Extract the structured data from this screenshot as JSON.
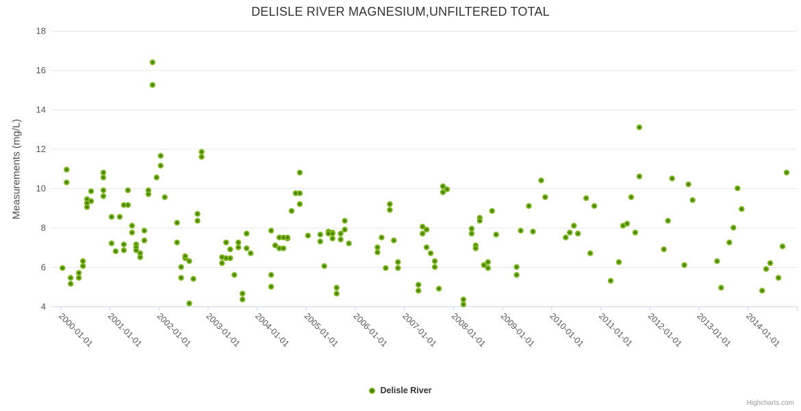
{
  "chart": {
    "title": "DELISLE RIVER MAGNESIUM,UNFILTERED TOTAL",
    "y_axis_title": "Measurements (mg/L)",
    "legend_label": "Delisle River",
    "credit": "Highcharts.com"
  },
  "colors": {
    "marker_ring": "#7CB31A",
    "marker_core": "#3E7A08",
    "gridline": "#e6e6e6",
    "axis_line": "#ccd6eb",
    "tick_label": "#555555",
    "title_text": "#333333"
  },
  "chart_data": {
    "type": "scatter",
    "title": "DELISLE RIVER MAGNESIUM,UNFILTERED TOTAL",
    "xlabel": "",
    "ylabel": "Measurements (mg/L)",
    "ylim": [
      4,
      18
    ],
    "y_ticks": [
      4,
      6,
      8,
      10,
      12,
      14,
      16,
      18
    ],
    "x_tick_labels": [
      "2000-01-01",
      "2001-01-01",
      "2002-01-01",
      "2003-01-01",
      "2004-01-01",
      "2005-01-01",
      "2006-01-01",
      "2007-01-01",
      "2008-01-01",
      "2009-01-01",
      "2010-01-01",
      "2011-01-01",
      "2012-01-01",
      "2013-01-01",
      "2014-01-01"
    ],
    "x_range_years": [
      2000,
      2015
    ],
    "grid": "horizontal",
    "legend_position": "bottom-center",
    "series": [
      {
        "name": "Delisle River",
        "points": [
          [
            "2000-01",
            5.95
          ],
          [
            "2000-02",
            10.95
          ],
          [
            "2000-02",
            10.3
          ],
          [
            "2000-03",
            5.45
          ],
          [
            "2000-03",
            5.15
          ],
          [
            "2000-05",
            5.7
          ],
          [
            "2000-05",
            5.45
          ],
          [
            "2000-06",
            6.3
          ],
          [
            "2000-06",
            6.05
          ],
          [
            "2000-07",
            9.45
          ],
          [
            "2000-07",
            9.05
          ],
          [
            "2000-07",
            9.25
          ],
          [
            "2000-08",
            9.35
          ],
          [
            "2000-08",
            9.85
          ],
          [
            "2000-11",
            10.8
          ],
          [
            "2000-11",
            10.55
          ],
          [
            "2000-11",
            9.9
          ],
          [
            "2000-11",
            9.6
          ],
          [
            "2001-01",
            8.55
          ],
          [
            "2001-01",
            7.2
          ],
          [
            "2001-02",
            6.8
          ],
          [
            "2001-03",
            8.55
          ],
          [
            "2001-04",
            9.15
          ],
          [
            "2001-04",
            7.15
          ],
          [
            "2001-04",
            6.85
          ],
          [
            "2001-05",
            9.9
          ],
          [
            "2001-05",
            9.15
          ],
          [
            "2001-06",
            8.1
          ],
          [
            "2001-06",
            7.75
          ],
          [
            "2001-07",
            7.15
          ],
          [
            "2001-07",
            7.0
          ],
          [
            "2001-07",
            6.85
          ],
          [
            "2001-08",
            6.7
          ],
          [
            "2001-08",
            6.5
          ],
          [
            "2001-09",
            7.85
          ],
          [
            "2001-09",
            7.35
          ],
          [
            "2001-10",
            9.9
          ],
          [
            "2001-10",
            9.7
          ],
          [
            "2001-11",
            16.4
          ],
          [
            "2001-11",
            15.25
          ],
          [
            "2001-12",
            10.55
          ],
          [
            "2002-01",
            11.65
          ],
          [
            "2002-01",
            11.15
          ],
          [
            "2002-02",
            9.55
          ],
          [
            "2002-05",
            7.25
          ],
          [
            "2002-05",
            8.25
          ],
          [
            "2002-06",
            6.0
          ],
          [
            "2002-06",
            5.45
          ],
          [
            "2002-07",
            6.45
          ],
          [
            "2002-07",
            6.55
          ],
          [
            "2002-08",
            6.3
          ],
          [
            "2002-08",
            4.15
          ],
          [
            "2002-09",
            5.4
          ],
          [
            "2002-10",
            8.7
          ],
          [
            "2002-10",
            8.35
          ],
          [
            "2002-11",
            11.85
          ],
          [
            "2002-11",
            11.6
          ],
          [
            "2003-04",
            6.5
          ],
          [
            "2003-04",
            6.2
          ],
          [
            "2003-05",
            6.45
          ],
          [
            "2003-05",
            7.25
          ],
          [
            "2003-06",
            6.45
          ],
          [
            "2003-06",
            6.9
          ],
          [
            "2003-07",
            5.6
          ],
          [
            "2003-08",
            7.25
          ],
          [
            "2003-08",
            7.0
          ],
          [
            "2003-09",
            4.65
          ],
          [
            "2003-09",
            4.35
          ],
          [
            "2003-10",
            6.95
          ],
          [
            "2003-10",
            7.7
          ],
          [
            "2003-11",
            6.7
          ],
          [
            "2004-04",
            5.6
          ],
          [
            "2004-04",
            5.0
          ],
          [
            "2004-04",
            7.85
          ],
          [
            "2004-05",
            7.1
          ],
          [
            "2004-06",
            7.5
          ],
          [
            "2004-06",
            6.95
          ],
          [
            "2004-07",
            7.5
          ],
          [
            "2004-07",
            6.95
          ],
          [
            "2004-08",
            7.45
          ],
          [
            "2004-08",
            7.5
          ],
          [
            "2004-09",
            8.85
          ],
          [
            "2004-10",
            9.75
          ],
          [
            "2004-11",
            10.8
          ],
          [
            "2004-11",
            9.75
          ],
          [
            "2004-11",
            9.2
          ],
          [
            "2005-01",
            7.6
          ],
          [
            "2005-04",
            7.65
          ],
          [
            "2005-04",
            7.3
          ],
          [
            "2005-05",
            6.05
          ],
          [
            "2005-06",
            7.8
          ],
          [
            "2005-06",
            7.7
          ],
          [
            "2005-07",
            7.45
          ],
          [
            "2005-07",
            7.75
          ],
          [
            "2005-07",
            7.7
          ],
          [
            "2005-08",
            4.95
          ],
          [
            "2005-08",
            4.65
          ],
          [
            "2005-09",
            7.7
          ],
          [
            "2005-09",
            7.4
          ],
          [
            "2005-10",
            8.35
          ],
          [
            "2005-10",
            7.9
          ],
          [
            "2005-11",
            7.2
          ],
          [
            "2006-06",
            7.0
          ],
          [
            "2006-06",
            6.75
          ],
          [
            "2006-07",
            7.5
          ],
          [
            "2006-08",
            5.95
          ],
          [
            "2006-09",
            9.2
          ],
          [
            "2006-09",
            8.9
          ],
          [
            "2006-10",
            7.35
          ],
          [
            "2006-11",
            6.25
          ],
          [
            "2006-11",
            5.95
          ],
          [
            "2007-04",
            5.1
          ],
          [
            "2007-04",
            4.8
          ],
          [
            "2007-05",
            8.05
          ],
          [
            "2007-05",
            7.7
          ],
          [
            "2007-06",
            7.9
          ],
          [
            "2007-06",
            7.0
          ],
          [
            "2007-07",
            6.7
          ],
          [
            "2007-08",
            6.3
          ],
          [
            "2007-08",
            6.0
          ],
          [
            "2007-09",
            4.9
          ],
          [
            "2007-10",
            10.1
          ],
          [
            "2007-10",
            9.8
          ],
          [
            "2007-11",
            9.95
          ],
          [
            "2008-03",
            4.35
          ],
          [
            "2008-03",
            4.1
          ],
          [
            "2008-05",
            7.95
          ],
          [
            "2008-05",
            7.7
          ],
          [
            "2008-06",
            7.1
          ],
          [
            "2008-06",
            6.95
          ],
          [
            "2008-07",
            8.5
          ],
          [
            "2008-07",
            8.35
          ],
          [
            "2008-08",
            6.1
          ],
          [
            "2008-09",
            6.25
          ],
          [
            "2008-09",
            5.95
          ],
          [
            "2008-10",
            8.85
          ],
          [
            "2008-11",
            7.65
          ],
          [
            "2009-04",
            6.0
          ],
          [
            "2009-04",
            5.6
          ],
          [
            "2009-05",
            7.85
          ],
          [
            "2009-07",
            9.1
          ],
          [
            "2009-08",
            7.8
          ],
          [
            "2009-10",
            10.4
          ],
          [
            "2009-11",
            9.55
          ],
          [
            "2010-04",
            7.5
          ],
          [
            "2010-05",
            7.75
          ],
          [
            "2010-06",
            8.1
          ],
          [
            "2010-07",
            7.7
          ],
          [
            "2010-09",
            9.5
          ],
          [
            "2010-10",
            6.7
          ],
          [
            "2010-11",
            9.1
          ],
          [
            "2011-03",
            5.3
          ],
          [
            "2011-05",
            6.25
          ],
          [
            "2011-06",
            8.1
          ],
          [
            "2011-07",
            8.2
          ],
          [
            "2011-08",
            9.55
          ],
          [
            "2011-09",
            7.75
          ],
          [
            "2011-10",
            13.1
          ],
          [
            "2011-10",
            10.6
          ],
          [
            "2012-04",
            6.9
          ],
          [
            "2012-05",
            8.35
          ],
          [
            "2012-06",
            10.5
          ],
          [
            "2012-09",
            6.1
          ],
          [
            "2012-10",
            10.2
          ],
          [
            "2012-11",
            9.4
          ],
          [
            "2013-05",
            6.3
          ],
          [
            "2013-06",
            4.95
          ],
          [
            "2013-08",
            7.25
          ],
          [
            "2013-09",
            8.0
          ],
          [
            "2013-10",
            10.0
          ],
          [
            "2013-11",
            8.95
          ],
          [
            "2014-04",
            4.8
          ],
          [
            "2014-05",
            5.9
          ],
          [
            "2014-06",
            6.2
          ],
          [
            "2014-08",
            5.45
          ],
          [
            "2014-09",
            7.05
          ],
          [
            "2014-10",
            10.8
          ]
        ]
      }
    ]
  }
}
